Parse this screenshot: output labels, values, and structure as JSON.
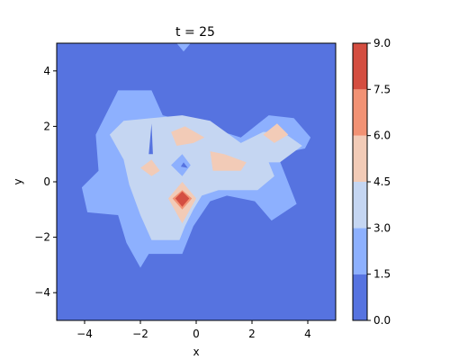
{
  "chart_data": {
    "type": "contourf",
    "title": "t = 25",
    "xlabel": "x",
    "ylabel": "y",
    "xlim": [
      -5,
      5
    ],
    "ylim": [
      -5,
      5
    ],
    "x_ticks": [
      -4,
      -2,
      0,
      2,
      4
    ],
    "y_ticks": [
      -4,
      -2,
      0,
      2,
      4
    ],
    "x_tick_labels": [
      "−4",
      "−2",
      "0",
      "2",
      "4"
    ],
    "y_tick_labels": [
      "−4",
      "−2",
      "0",
      "2",
      "4"
    ],
    "colorbar": {
      "levels": [
        0.0,
        1.5,
        3.0,
        4.5,
        6.0,
        7.5,
        9.0
      ],
      "tick_labels": [
        "0.0",
        "1.5",
        "3.0",
        "4.5",
        "6.0",
        "7.5",
        "9.0"
      ],
      "colors": [
        "#5673e0",
        "#8db0fe",
        "#c5d6f2",
        "#f2cbb7",
        "#f29274",
        "#d44e41"
      ]
    },
    "regions": [
      {
        "level": 1,
        "label": "1.5–3.0",
        "points": [
          [
            -2.8,
            3.3
          ],
          [
            -1.6,
            3.3
          ],
          [
            -1.2,
            2.4
          ],
          [
            0.3,
            2.0
          ],
          [
            1.6,
            1.6
          ],
          [
            2.6,
            2.4
          ],
          [
            3.5,
            2.3
          ],
          [
            4.1,
            1.6
          ],
          [
            3.9,
            1.2
          ],
          [
            2.9,
            1.0
          ],
          [
            3.6,
            -0.8
          ],
          [
            2.7,
            -1.4
          ],
          [
            2.1,
            -0.7
          ],
          [
            1.1,
            -0.5
          ],
          [
            0.5,
            -0.7
          ],
          [
            -0.1,
            -1.6
          ],
          [
            -0.5,
            -2.6
          ],
          [
            -1.7,
            -2.6
          ],
          [
            -2.0,
            -3.1
          ],
          [
            -2.5,
            -2.2
          ],
          [
            -2.8,
            -1.2
          ],
          [
            -3.9,
            -1.1
          ],
          [
            -4.1,
            -0.2
          ],
          [
            -3.5,
            0.4
          ],
          [
            -3.6,
            1.7
          ]
        ]
      },
      {
        "level": 2,
        "label": "3.0–4.5",
        "points": [
          [
            -3.1,
            1.7
          ],
          [
            -2.6,
            2.2
          ],
          [
            -1.6,
            2.3
          ],
          [
            -0.5,
            2.4
          ],
          [
            0.5,
            2.2
          ],
          [
            1.6,
            1.4
          ],
          [
            2.4,
            1.8
          ],
          [
            3.1,
            1.8
          ],
          [
            3.8,
            1.3
          ],
          [
            3.0,
            0.7
          ],
          [
            2.6,
            0.7
          ],
          [
            2.8,
            0.2
          ],
          [
            2.2,
            -0.3
          ],
          [
            0.8,
            -0.3
          ],
          [
            0.2,
            -0.5
          ],
          [
            -0.1,
            -1.0
          ],
          [
            -0.4,
            -1.6
          ],
          [
            -0.6,
            -2.1
          ],
          [
            -1.6,
            -2.1
          ],
          [
            -2.0,
            -1.2
          ],
          [
            -2.4,
            -0.1
          ],
          [
            -2.6,
            0.8
          ]
        ]
      },
      {
        "level": 3,
        "label": "4.5–6.0",
        "points": [
          [
            -1.6,
            0.8
          ],
          [
            -1.3,
            0.4
          ],
          [
            -1.6,
            0.2
          ],
          [
            -2.0,
            0.5
          ]
        ]
      },
      {
        "level": 3,
        "label": "4.5–6.0",
        "points": [
          [
            -0.9,
            1.8
          ],
          [
            -0.4,
            2.0
          ],
          [
            0.3,
            1.6
          ],
          [
            -0.1,
            1.4
          ],
          [
            -0.7,
            1.3
          ]
        ]
      },
      {
        "level": 3,
        "label": "4.5–6.0",
        "points": [
          [
            0.5,
            1.1
          ],
          [
            1.0,
            1.0
          ],
          [
            1.8,
            0.7
          ],
          [
            1.6,
            0.4
          ],
          [
            0.6,
            0.4
          ]
        ]
      },
      {
        "level": 3,
        "label": "4.5–6.0",
        "points": [
          [
            2.4,
            1.7
          ],
          [
            2.9,
            2.1
          ],
          [
            3.3,
            1.7
          ],
          [
            2.8,
            1.4
          ]
        ]
      },
      {
        "level": 3,
        "label": "4.5–6.0",
        "points": [
          [
            -0.5,
            0.0
          ],
          [
            0.0,
            -0.6
          ],
          [
            -0.5,
            -1.5
          ],
          [
            -1.0,
            -0.6
          ]
        ]
      },
      {
        "level": 4,
        "label": "6.0–7.5",
        "points": [
          [
            -0.5,
            -0.3
          ],
          [
            -0.15,
            -0.6
          ],
          [
            -0.5,
            -1.0
          ],
          [
            -0.85,
            -0.6
          ]
        ]
      },
      {
        "level": 5,
        "label": "7.5–9.0",
        "points": [
          [
            -0.5,
            -0.35
          ],
          [
            -0.25,
            -0.6
          ],
          [
            -0.5,
            -0.9
          ],
          [
            -0.75,
            -0.6
          ]
        ]
      },
      {
        "level": 1,
        "label": "1.5–3.0",
        "points": [
          [
            -0.9,
            0.6
          ],
          [
            -0.5,
            1.0
          ],
          [
            -0.2,
            0.6
          ],
          [
            -0.5,
            0.2
          ]
        ]
      },
      {
        "level": 0,
        "label": "0.0–1.5",
        "points": [
          [
            -1.7,
            1.0
          ],
          [
            -1.55,
            1.0
          ],
          [
            -1.6,
            2.1
          ]
        ]
      },
      {
        "level": 0,
        "label": "0.0–1.5",
        "points": [
          [
            -0.45,
            0.7
          ],
          [
            -0.3,
            0.5
          ],
          [
            -0.55,
            0.55
          ]
        ]
      },
      {
        "level": 1,
        "label": "1.5–3.0",
        "points": [
          [
            -0.7,
            5.0
          ],
          [
            -0.2,
            5.0
          ],
          [
            -0.45,
            4.7
          ]
        ]
      }
    ]
  }
}
